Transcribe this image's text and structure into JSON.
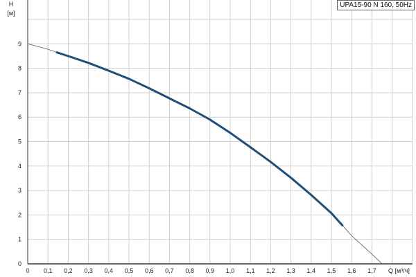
{
  "chart_data": {
    "type": "line",
    "title": "",
    "legend": "UPA15-90 N 160, 50Hz",
    "legend_placement": "top-right",
    "xlabel": "Q [м³/ч]",
    "ylabel_top": "H",
    "ylabel_unit": "[м]",
    "xlim": [
      0,
      1.9
    ],
    "ylim": [
      0,
      10
    ],
    "grid": true,
    "x_ticks": [
      "0",
      "0,1",
      "0,2",
      "0,3",
      "0,4",
      "0,5",
      "0,6",
      "0,7",
      "0,8",
      "0,9",
      "1,0",
      "1,1",
      "1,2",
      "1,3",
      "1,4",
      "1,5",
      "1,6",
      "1,7"
    ],
    "y_ticks": [
      "0",
      "1",
      "2",
      "3",
      "4",
      "5",
      "6",
      "7",
      "8",
      "9"
    ],
    "colors": {
      "curve": "#1f4e79",
      "extension": "#555555",
      "grid": "#d0d0d0"
    },
    "series": [
      {
        "x": [
          0,
          0.1,
          0.14,
          0.2,
          0.3,
          0.4,
          0.5,
          0.6,
          0.7,
          0.8,
          0.9,
          1.0,
          1.1,
          1.2,
          1.3,
          1.4,
          1.5,
          1.557,
          1.6,
          1.7,
          1.75
        ],
        "y": [
          9.0,
          8.78,
          8.66,
          8.5,
          8.22,
          7.9,
          7.57,
          7.18,
          6.77,
          6.36,
          5.9,
          5.36,
          4.77,
          4.17,
          3.52,
          2.82,
          2.07,
          1.55,
          1.15,
          0.4,
          0
        ],
        "operating_range": [
          0.14,
          1.557
        ]
      }
    ]
  }
}
